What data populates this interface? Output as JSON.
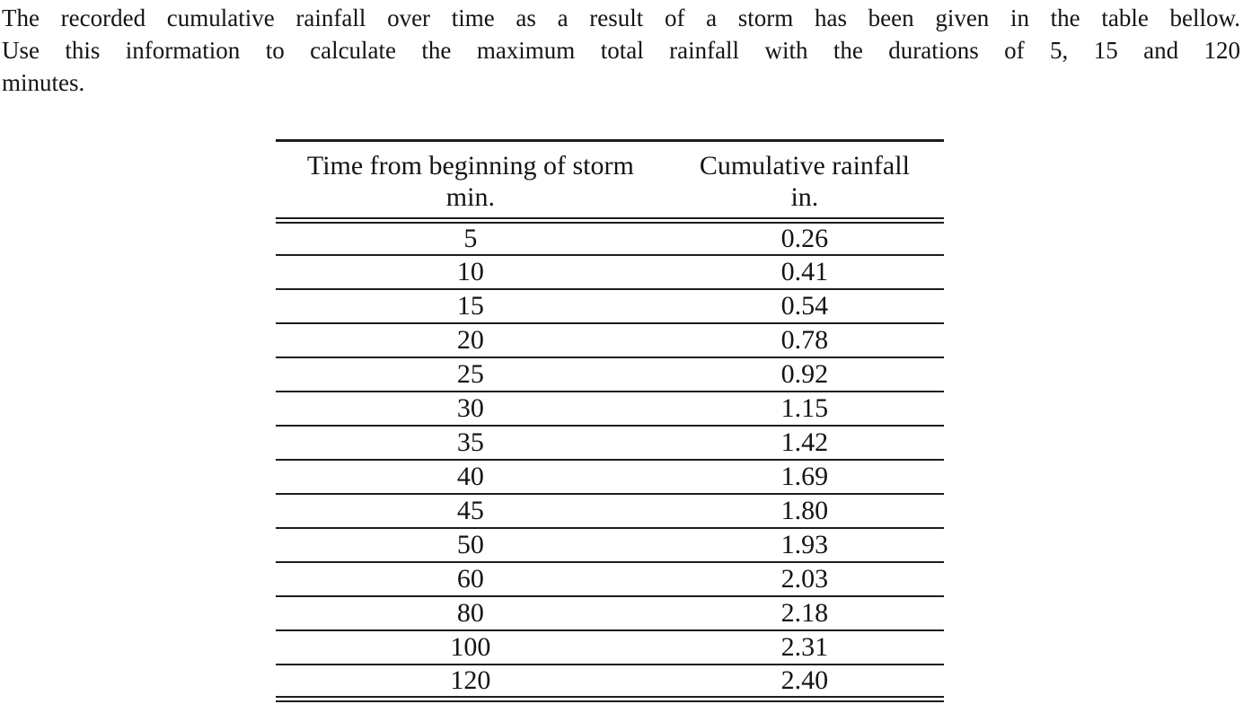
{
  "problem": {
    "lines": [
      "The recorded cumulative rainfall over time as a result of a storm has been given in the table bellow.",
      "Use this information to calculate the maximum total rainfall with the durations of 5, 15 and 120",
      "minutes."
    ]
  },
  "table": {
    "col1_header": "Time from beginning of storm",
    "col1_unit": "min.",
    "col2_header": "Cumulative rainfall",
    "col2_unit": "in.",
    "rows": [
      {
        "time": "5",
        "rainfall": "0.26"
      },
      {
        "time": "10",
        "rainfall": "0.41"
      },
      {
        "time": "15",
        "rainfall": "0.54"
      },
      {
        "time": "20",
        "rainfall": "0.78"
      },
      {
        "time": "25",
        "rainfall": "0.92"
      },
      {
        "time": "30",
        "rainfall": "1.15"
      },
      {
        "time": "35",
        "rainfall": "1.42"
      },
      {
        "time": "40",
        "rainfall": "1.69"
      },
      {
        "time": "45",
        "rainfall": "1.80"
      },
      {
        "time": "50",
        "rainfall": "1.93"
      },
      {
        "time": "60",
        "rainfall": "2.03"
      },
      {
        "time": "80",
        "rainfall": "2.18"
      },
      {
        "time": "100",
        "rainfall": "2.31"
      },
      {
        "time": "120",
        "rainfall": "2.40"
      }
    ]
  },
  "chart_data": {
    "type": "table",
    "columns": [
      "Time from beginning of storm (min.)",
      "Cumulative rainfall (in.)"
    ],
    "x": [
      5,
      10,
      15,
      20,
      25,
      30,
      35,
      40,
      45,
      50,
      60,
      80,
      100,
      120
    ],
    "values": [
      0.26,
      0.41,
      0.54,
      0.78,
      0.92,
      1.15,
      1.42,
      1.69,
      1.8,
      1.93,
      2.03,
      2.18,
      2.31,
      2.4
    ]
  },
  "colors": {
    "text": "#141414",
    "rule": "#1c1c1c",
    "background": "#ffffff"
  }
}
